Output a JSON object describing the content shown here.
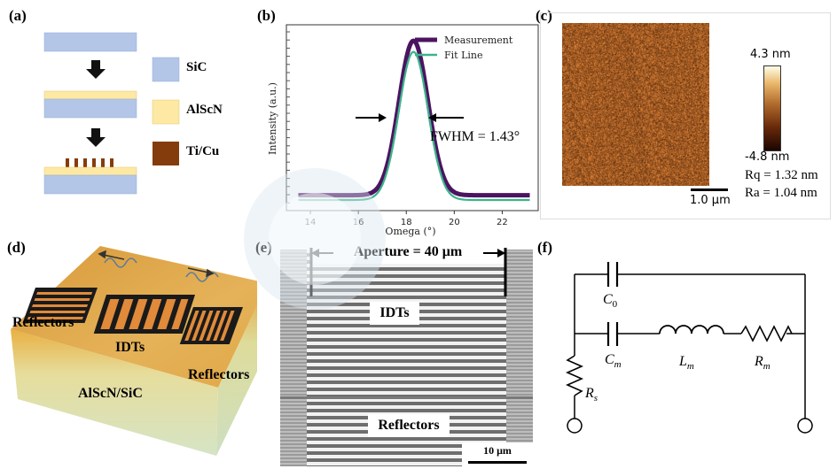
{
  "panels": {
    "a": "(a)",
    "b": "(b)",
    "c": "(c)",
    "d": "(d)",
    "e": "(e)",
    "f": "(f)"
  },
  "panel_a": {
    "legend": [
      {
        "label": "SiC",
        "color": "#b4c6e7"
      },
      {
        "label": "AlScN",
        "color": "#fde9a4"
      },
      {
        "label": "Ti/Cu",
        "color": "#843c0c"
      }
    ]
  },
  "chart_data": {
    "type": "line",
    "xlabel": "Omega (°)",
    "ylabel": "Intensity (a.u.)",
    "xlim": [
      13,
      23.5
    ],
    "xticks": [
      14,
      16,
      18,
      20,
      22
    ],
    "center": 18.3,
    "fwhm": 1.43,
    "annotation": "FWHM = 1.43°",
    "series": [
      {
        "name": "Measurement",
        "color": "#4b1460",
        "peak": 1.0,
        "baseline": 0.03
      },
      {
        "name": "Fit Line",
        "color": "#3cb38a",
        "peak": 0.93,
        "baseline": 0.0
      }
    ],
    "legend_position": "top-right"
  },
  "panel_c": {
    "scale_max": "4.3 nm",
    "scale_min": "-4.8 nm",
    "rq": "Rq = 1.32 nm",
    "ra": "Ra = 1.04 nm",
    "scalebar": "1.0 μm"
  },
  "panel_d": {
    "reflectors_left": "Reflectors",
    "idts": "IDTs",
    "reflectors_right": "Reflectors",
    "substrate": "AlScN/SiC"
  },
  "panel_e": {
    "aperture": "Aperture = 40 μm",
    "idts": "IDTs",
    "reflectors": "Reflectors",
    "scalebar": "10 μm"
  },
  "panel_f": {
    "c0": "C",
    "c0_sub": "0",
    "cm": "C",
    "cm_sub": "m",
    "lm": "L",
    "lm_sub": "m",
    "rm": "R",
    "rm_sub": "m",
    "rs": "R",
    "rs_sub": "s"
  }
}
